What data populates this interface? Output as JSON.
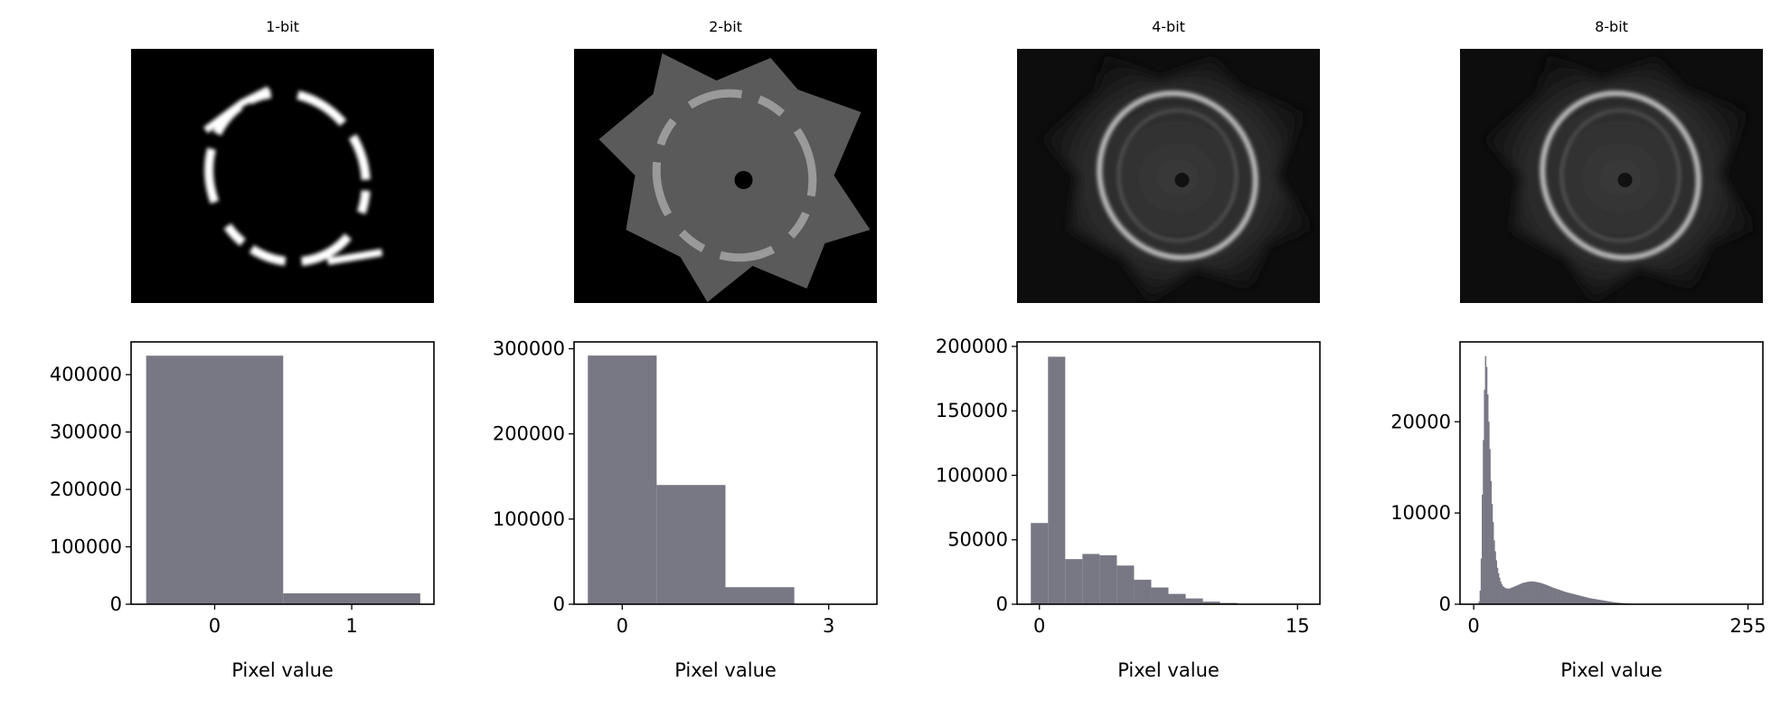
{
  "bar_color": "#787885",
  "panels": [
    {
      "title": "1-bit",
      "image_style": "binary"
    },
    {
      "title": "2-bit",
      "image_style": "twobit"
    },
    {
      "title": "4-bit",
      "image_style": "fourbit"
    },
    {
      "title": "8-bit",
      "image_style": "eightbit"
    }
  ],
  "chart_data": [
    {
      "type": "bar",
      "title": "1-bit",
      "xlabel": "Pixel value",
      "ylabel": "",
      "x": [
        0,
        1
      ],
      "values": [
        433000,
        19000
      ],
      "xlim": [
        -0.61,
        1.6
      ],
      "ylim": [
        0,
        457000
      ],
      "xticks": [
        0,
        1
      ],
      "yticks": [
        0,
        100000,
        200000,
        300000,
        400000
      ],
      "grid": false
    },
    {
      "type": "bar",
      "title": "2-bit",
      "xlabel": "Pixel value",
      "ylabel": "",
      "x": [
        0,
        1,
        2,
        3
      ],
      "values": [
        292000,
        140000,
        20000,
        0
      ],
      "xlim": [
        -0.7,
        3.7
      ],
      "ylim": [
        0,
        308000
      ],
      "xticks": [
        0,
        3
      ],
      "yticks": [
        0,
        100000,
        200000,
        300000
      ],
      "grid": false
    },
    {
      "type": "bar",
      "title": "4-bit",
      "xlabel": "Pixel value",
      "ylabel": "",
      "x": [
        0,
        1,
        2,
        3,
        4,
        5,
        6,
        7,
        8,
        9,
        10,
        11,
        12,
        13,
        14,
        15
      ],
      "values": [
        63000,
        192000,
        35000,
        39000,
        38000,
        30000,
        19000,
        13000,
        8000,
        4500,
        2000,
        1000,
        300,
        100,
        0,
        0
      ],
      "xlim": [
        -1.3,
        16.3
      ],
      "ylim": [
        0,
        203500
      ],
      "xticks": [
        0,
        15
      ],
      "yticks": [
        0,
        50000,
        100000,
        150000,
        200000
      ],
      "grid": false
    },
    {
      "type": "bar",
      "title": "8-bit",
      "xlabel": "Pixel value",
      "ylabel": "",
      "x_range": [
        0,
        255
      ],
      "values": [
        0,
        0,
        0,
        0,
        0,
        300,
        1500,
        5000,
        12000,
        18000,
        23500,
        27200,
        26000,
        23000,
        20000,
        17000,
        13500,
        11000,
        9000,
        7000,
        5800,
        4800,
        4000,
        3400,
        2900,
        2500,
        2200,
        2000,
        1900,
        1800,
        1750,
        1720,
        1700,
        1720,
        1750,
        1800,
        1850,
        1900,
        1950,
        2000,
        2050,
        2100,
        2150,
        2200,
        2250,
        2300,
        2350,
        2380,
        2400,
        2420,
        2450,
        2470,
        2480,
        2500,
        2500,
        2490,
        2480,
        2460,
        2440,
        2420,
        2400,
        2370,
        2340,
        2300,
        2260,
        2220,
        2180,
        2140,
        2100,
        2050,
        2000,
        1950,
        1900,
        1850,
        1800,
        1760,
        1720,
        1680,
        1640,
        1600,
        1560,
        1520,
        1480,
        1440,
        1400,
        1360,
        1320,
        1290,
        1260,
        1230,
        1200,
        1170,
        1140,
        1110,
        1080,
        1050,
        1020,
        990,
        960,
        930,
        900,
        870,
        840,
        810,
        780,
        750,
        720,
        690,
        660,
        640,
        620,
        600,
        580,
        560,
        540,
        520,
        500,
        480,
        460,
        440,
        420,
        400,
        380,
        360,
        340,
        320,
        300,
        280,
        260,
        245,
        230,
        215,
        200,
        185,
        170,
        160,
        150,
        140,
        130,
        120,
        110,
        100,
        90,
        82,
        75,
        68,
        62,
        56,
        50,
        45,
        40,
        36,
        32,
        28,
        25,
        22,
        20,
        18,
        16,
        14,
        12,
        10,
        9,
        8,
        7,
        6,
        5,
        5,
        4,
        4,
        3,
        3,
        3,
        2,
        2,
        2,
        2,
        2,
        1,
        1,
        1,
        1,
        1,
        1,
        1,
        1,
        0,
        0,
        0,
        0,
        0,
        0,
        0,
        0,
        0,
        0,
        0,
        0,
        0,
        0,
        0,
        0,
        0,
        0,
        0,
        0,
        0,
        0,
        0,
        0,
        0,
        0,
        0,
        0,
        0,
        0,
        0,
        0,
        0,
        0,
        0,
        0,
        0,
        0,
        0,
        0,
        0,
        0,
        0,
        0,
        0,
        0,
        0,
        0,
        0,
        0,
        0,
        0,
        0,
        0,
        0,
        0,
        0,
        0,
        0,
        0,
        0,
        0,
        0,
        0,
        0,
        0,
        0,
        0,
        0,
        0,
        0,
        0,
        0,
        0,
        0,
        0
      ],
      "xlim": [
        -12.7,
        268.8
      ],
      "ylim": [
        0,
        28750
      ],
      "xticks": [
        0,
        255
      ],
      "yticks": [
        0,
        10000,
        20000
      ],
      "grid": false
    }
  ]
}
